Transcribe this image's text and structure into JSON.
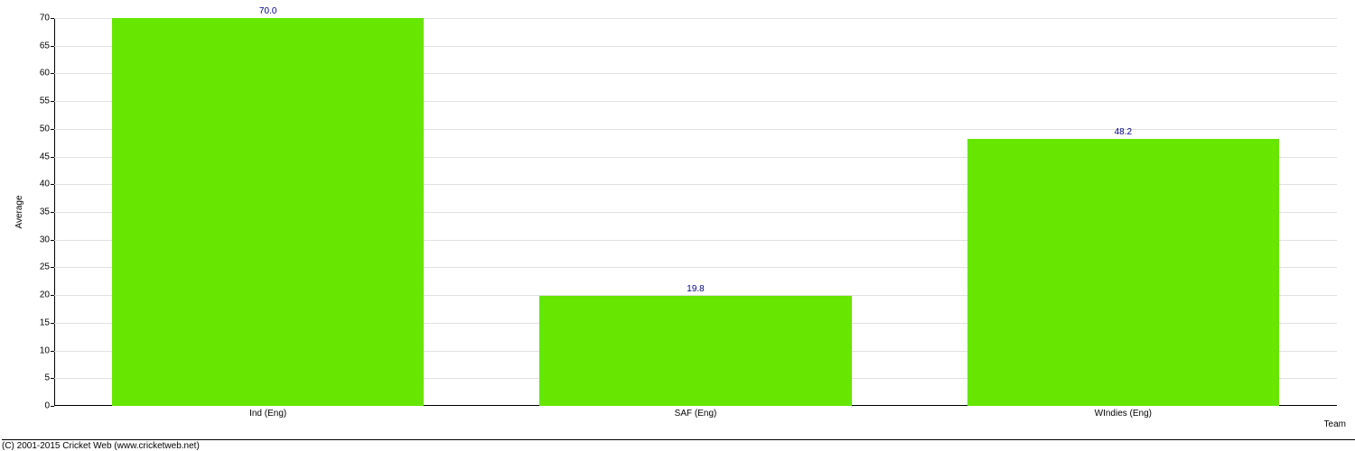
{
  "chart": {
    "type": "bar",
    "background_color": "#ffffff",
    "grid_color": "#e0e0e0",
    "axis_color": "#000000",
    "tick_label_color": "#000000",
    "tick_label_fontsize": 10,
    "value_label_color": "#00008b",
    "value_label_fontsize": 10,
    "bar_color": "#66e600",
    "ylabel": "Average",
    "xlabel": "Team",
    "ylim": [
      0,
      70
    ],
    "ytick_step": 5,
    "categories": [
      "Ind (Eng)",
      "SAF (Eng)",
      "WIndies (Eng)"
    ],
    "values": [
      70.0,
      19.8,
      48.2
    ],
    "value_labels": [
      "70.0",
      "19.8",
      "48.2"
    ],
    "bar_width_ratio": 0.73
  },
  "copyright": "(C) 2001-2015 Cricket Web (www.cricketweb.net)"
}
